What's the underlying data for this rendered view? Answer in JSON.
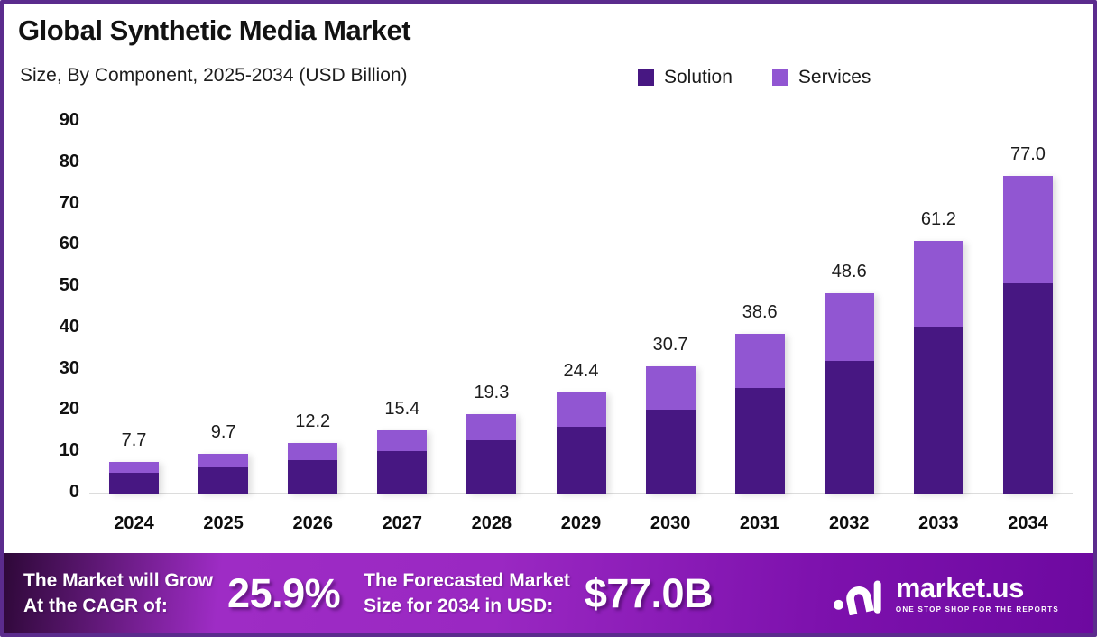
{
  "header": {
    "title": "Global Synthetic Media Market",
    "subtitle": "Size, By Component, 2025-2034 (USD Billion)"
  },
  "chart_data": {
    "type": "bar",
    "stacked": true,
    "title": "Global Synthetic Media Market Size, By Component, 2025-2034 (USD Billion)",
    "categories": [
      "2024",
      "2025",
      "2026",
      "2027",
      "2028",
      "2029",
      "2030",
      "2031",
      "2032",
      "2033",
      "2034"
    ],
    "series": [
      {
        "name": "Solution",
        "color": "#471782",
        "values": [
          5.1,
          6.4,
          8.1,
          10.2,
          12.8,
          16.1,
          20.3,
          25.5,
          32.1,
          40.4,
          50.8
        ]
      },
      {
        "name": "Services",
        "color": "#9156d2",
        "values": [
          2.6,
          3.3,
          4.1,
          5.2,
          6.5,
          8.3,
          10.4,
          13.1,
          16.5,
          20.8,
          26.2
        ]
      }
    ],
    "totals": [
      "7.7",
      "9.7",
      "12.2",
      "15.4",
      "19.3",
      "24.4",
      "30.7",
      "38.6",
      "48.6",
      "61.2",
      "77.0"
    ],
    "xlabel": "",
    "ylabel": "",
    "ylim": [
      0,
      90
    ],
    "yticks": [
      0,
      10,
      20,
      30,
      40,
      50,
      60,
      70,
      80,
      90
    ],
    "grid": false,
    "legend_position": "top-right"
  },
  "footer": {
    "cagr": {
      "label_line1": "The Market will Grow",
      "label_line2": "At the CAGR of:",
      "value": "25.9%"
    },
    "forecast": {
      "label_line1": "The Forecasted Market",
      "label_line2": "Size for 2034 in USD:",
      "value": "$77.0B"
    },
    "brand": {
      "name": "market.us",
      "tagline": "ONE STOP SHOP FOR THE REPORTS"
    }
  },
  "colors": {
    "solution": "#471782",
    "services": "#9156d2",
    "frame_border": "#5b2b8d",
    "baseline": "#dcdcdc",
    "footer_gradient_start": "#2e0838",
    "footer_gradient_mid": "#9a28c2",
    "footer_gradient_end": "#6d09a0"
  }
}
